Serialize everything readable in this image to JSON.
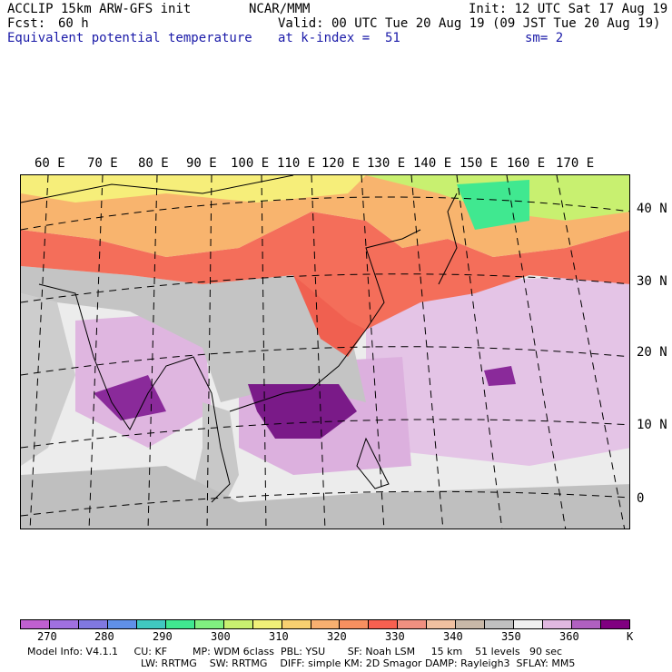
{
  "header": {
    "model": "ACCLIP 15km ARW-GFS init",
    "center": "NCAR/MMM",
    "init": "Init: 12 UTC Sat 17 Aug 19",
    "fcst_label": "Fcst:",
    "fcst_value": "60 h",
    "valid": "Valid: 00 UTC Tue 20 Aug 19 (09 JST Tue 20 Aug 19)",
    "field": "Equivalent potential temperature",
    "level": "at k-index =  51",
    "smooth": "sm= 2"
  },
  "map": {
    "lon_labels": [
      "60 E",
      "70 E",
      "80 E",
      "90 E",
      "100 E",
      "110 E",
      "120 E",
      "130 E",
      "140 E",
      "150 E",
      "160 E",
      "170 E"
    ],
    "lat_labels": [
      "40 N",
      "30 N",
      "20 N",
      "10 N",
      "0"
    ]
  },
  "colorbar": {
    "colors": [
      "#c060d0",
      "#a070e0",
      "#8078e0",
      "#6090e8",
      "#40c8c0",
      "#40e890",
      "#80f080",
      "#c8f070",
      "#f0f078",
      "#f8d070",
      "#f8b070",
      "#f89060",
      "#f86050",
      "#f09080",
      "#f0c0a0",
      "#c8b8a8",
      "#c0c0c0",
      "#f0f0f0",
      "#e0b8e0",
      "#b060c0",
      "#800080"
    ],
    "labels": [
      "270",
      "280",
      "290",
      "300",
      "310",
      "320",
      "330",
      "340",
      "350",
      "360"
    ],
    "unit": "K"
  },
  "footer": {
    "line1": "Model Info: V4.1.1     CU: KF        MP: WDM 6class  PBL: YSU       SF: Noah LSM     15 km    51 levels   90 sec",
    "line2": "LW: RRTMG    SW: RRTMG    DIFF: simple KM: 2D Smagor DAMP: Rayleigh3  SFLAY: MM5"
  }
}
